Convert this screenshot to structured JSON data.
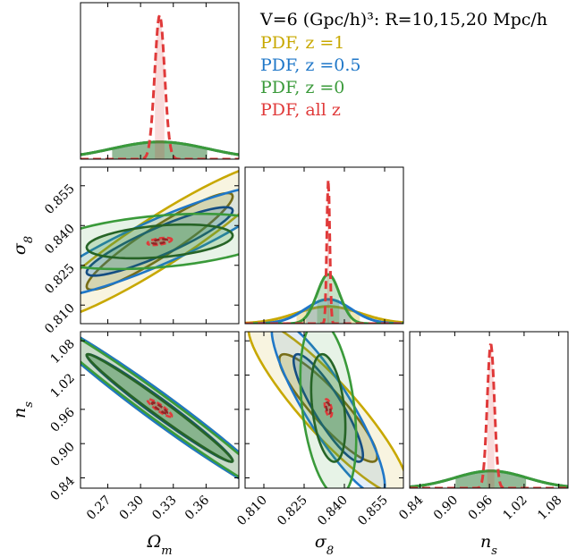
{
  "chart_data": {
    "type": "corner",
    "parameters": [
      {
        "name": "Omega_m",
        "label_main": "Ω",
        "label_sub": "m",
        "range": [
          0.245,
          0.39
        ],
        "ticks": [
          "0.27",
          "0.30",
          "0.33",
          "0.36"
        ],
        "tick_values": [
          0.27,
          0.3,
          0.33,
          0.36
        ]
      },
      {
        "name": "sigma8",
        "label_main": "σ",
        "label_sub": "8",
        "range": [
          0.803,
          0.862
        ],
        "ticks": [
          "0.810",
          "0.825",
          "0.840",
          "0.855"
        ],
        "tick_values": [
          0.81,
          0.825,
          0.84,
          0.855
        ]
      },
      {
        "name": "n_s",
        "label_main": "n",
        "label_sub": "s",
        "range": [
          0.822,
          1.096
        ],
        "ticks": [
          "0.84",
          "0.90",
          "0.96",
          "1.02",
          "1.08"
        ],
        "tick_values": [
          0.84,
          0.9,
          0.96,
          1.02,
          1.08
        ]
      }
    ],
    "legend": {
      "title": "V=6 (Gpc/h)³: R=10,15,20 Mpc/h",
      "position": "top-right",
      "entries": [
        {
          "label": "PDF, z =1",
          "color": "#c8a800"
        },
        {
          "label": "PDF, z =0.5",
          "color": "#1f77c8"
        },
        {
          "label": "PDF, z =0",
          "color": "#3a9a3a"
        },
        {
          "label": "PDF, all z",
          "color": "#e03a3a"
        }
      ]
    },
    "fiducial": [
      0.3175,
      0.834,
      0.9624
    ],
    "series": [
      {
        "name": "PDF, z =1",
        "color": "#c8a800",
        "sigma": [
          0.044,
          0.012,
          0.062
        ],
        "corr": {
          "01": 0.93,
          "02": -0.98,
          "12": -0.9
        }
      },
      {
        "name": "PDF, z =0.5",
        "color": "#1f77c8",
        "sigma": [
          0.044,
          0.0085,
          0.062
        ],
        "corr": {
          "01": 0.9,
          "02": -0.98,
          "12": -0.88
        }
      },
      {
        "name": "PDF, z =0",
        "color": "#3a9a3a",
        "sigma": [
          0.044,
          0.0042,
          0.062
        ],
        "corr": {
          "01": 0.35,
          "02": -0.985,
          "12": -0.35
        }
      },
      {
        "name": "PDF, all z",
        "color": "#e03a3a",
        "dashed": true,
        "sigma": [
          0.0045,
          0.00055,
          0.0062
        ],
        "corr": {
          "01": 0.5,
          "02": -0.9,
          "12": -0.5
        }
      }
    ]
  }
}
